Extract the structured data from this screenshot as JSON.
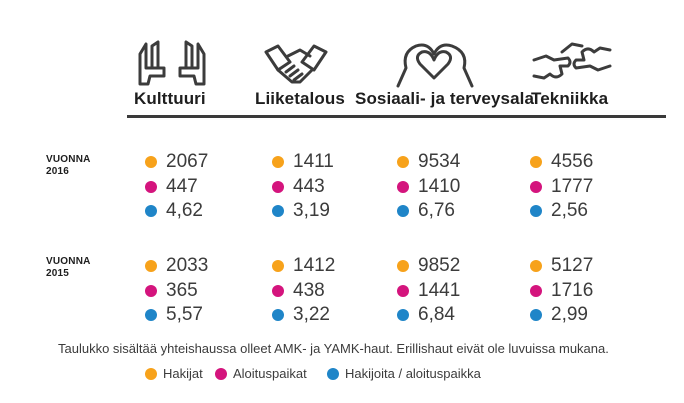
{
  "colors": {
    "hakijat": "#f7a21b",
    "aloituspaikat": "#d4147d",
    "ratio": "#1f85c8"
  },
  "chart_data": {
    "type": "table",
    "categories": [
      "Kulttuuri",
      "Liiketalous",
      "Sosiaali- ja terveysala",
      "Tekniikka"
    ],
    "icons": [
      "hands-frame-icon",
      "handshake-icon",
      "heart-hands-icon",
      "puzzle-hands-icon"
    ],
    "years": [
      {
        "label_line1": "VUONNA",
        "label_line2": "2016",
        "series": [
          {
            "name": "Hakijat",
            "values": [
              "2067",
              "1411",
              "9534",
              "4556"
            ]
          },
          {
            "name": "Aloituspaikat",
            "values": [
              "447",
              "443",
              "1410",
              "1777"
            ]
          },
          {
            "name": "Hakijoita / aloituspaikka",
            "values": [
              "4,62",
              "3,19",
              "6,76",
              "2,56"
            ]
          }
        ]
      },
      {
        "label_line1": "VUONNA",
        "label_line2": "2015",
        "series": [
          {
            "name": "Hakijat",
            "values": [
              "2033",
              "1412",
              "9852",
              "5127"
            ]
          },
          {
            "name": "Aloituspaikat",
            "values": [
              "365",
              "438",
              "1441",
              "1716"
            ]
          },
          {
            "name": "Hakijoita / aloituspaikka",
            "values": [
              "5,57",
              "3,22",
              "6,84",
              "2,99"
            ]
          }
        ]
      }
    ],
    "note": "Taulukko sisältää yhteishaussa olleet AMK- ja YAMK-haut. Erillishaut eivät ole luvuissa mukana.",
    "legend": [
      "Hakijat",
      "Aloituspaikat",
      "Hakijoita / aloituspaikka"
    ]
  }
}
